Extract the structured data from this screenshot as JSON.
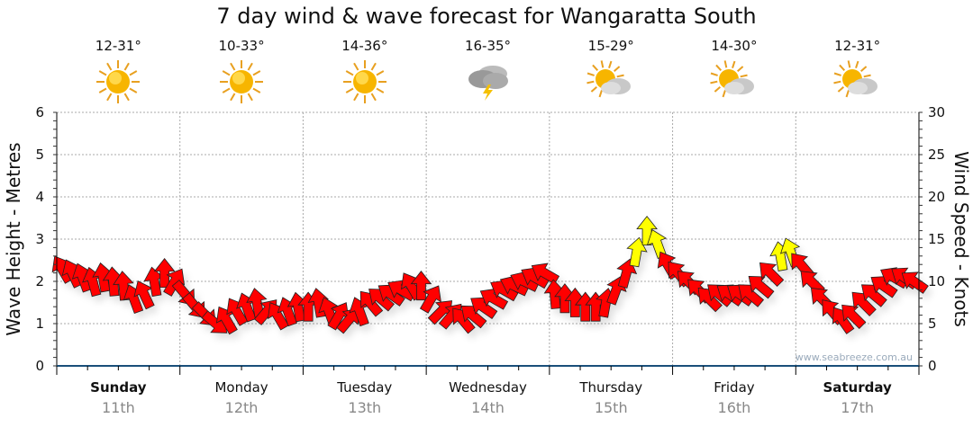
{
  "title": "7 day wind & wave forecast for Wangaratta South",
  "days": [
    {
      "name": "Sunday",
      "date": "11th",
      "temp": "12-31°",
      "icon": "sunny-icon",
      "bold": true
    },
    {
      "name": "Monday",
      "date": "12th",
      "temp": "10-33°",
      "icon": "sunny-icon",
      "bold": false
    },
    {
      "name": "Tuesday",
      "date": "13th",
      "temp": "14-36°",
      "icon": "sunny-icon",
      "bold": false
    },
    {
      "name": "Wednesday",
      "date": "14th",
      "temp": "16-35°",
      "icon": "storm-icon",
      "bold": false
    },
    {
      "name": "Thursday",
      "date": "15th",
      "temp": "15-29°",
      "icon": "partly-cloudy-icon",
      "bold": false
    },
    {
      "name": "Friday",
      "date": "16th",
      "temp": "14-30°",
      "icon": "partly-cloudy-icon",
      "bold": false
    },
    {
      "name": "Saturday",
      "date": "17th",
      "temp": "12-31°",
      "icon": "partly-cloudy-icon",
      "bold": true
    }
  ],
  "watermark": "www.seabreeze.com.au",
  "colors": {
    "calm": "#ff0000",
    "strong": "#ffff00",
    "axis": "#1a4f7a"
  },
  "chart_data": {
    "type": "scatter",
    "title": "7 day wind & wave forecast for Wangaratta South",
    "ylabel_left": "Wave Height - Metres",
    "ylim_left": [
      0,
      6
    ],
    "yticks_left": [
      "0",
      "1",
      "2",
      "3",
      "4",
      "5",
      "6"
    ],
    "ylabel_right": "Wind Speed - Knots",
    "ylim_right": [
      0,
      30
    ],
    "yticks_right": [
      "0",
      "5",
      "10",
      "15",
      "20",
      "25",
      "30"
    ],
    "strong_threshold_knots": 12.5,
    "points_per_day": 12,
    "wind_knots": [
      11.5,
      11,
      10.5,
      10,
      10.5,
      10,
      9.5,
      8,
      8.5,
      10,
      11,
      10,
      8.5,
      7,
      6,
      5,
      5.5,
      6.5,
      7,
      7.5,
      6.5,
      6,
      6.5,
      7,
      7,
      7.5,
      6.5,
      6,
      5.5,
      6.5,
      7.5,
      8,
      8.5,
      9,
      9.5,
      9.5,
      8,
      6.5,
      6,
      5.5,
      6,
      7,
      8,
      9,
      9.5,
      10,
      10.5,
      11,
      8.5,
      8,
      7.5,
      7,
      7,
      7.5,
      9,
      11,
      13.5,
      16,
      14.5,
      12,
      11,
      10,
      9,
      8,
      8.5,
      8.5,
      8.5,
      8.5,
      9.5,
      11,
      13,
      13.5,
      12,
      10,
      8,
      6.5,
      5.5,
      6,
      7.5,
      8.5,
      9.5,
      10.5,
      10.5,
      10
    ],
    "wind_heading_deg": [
      -30,
      -25,
      -20,
      -15,
      -10,
      -5,
      -5,
      -20,
      -25,
      -10,
      0,
      30,
      140,
      140,
      135,
      130,
      -30,
      -30,
      -20,
      -10,
      40,
      -30,
      -20,
      -10,
      0,
      -10,
      -20,
      30,
      40,
      -20,
      -40,
      -50,
      -55,
      -60,
      -30,
      0,
      30,
      45,
      40,
      -40,
      -50,
      -55,
      -60,
      -60,
      -65,
      -65,
      -60,
      -60,
      -5,
      0,
      0,
      0,
      0,
      10,
      20,
      15,
      10,
      0,
      -20,
      -30,
      -40,
      -45,
      -45,
      -45,
      -50,
      -55,
      -55,
      -50,
      -50,
      -45,
      -10,
      -20,
      -40,
      -45,
      -45,
      -40,
      -35,
      -45,
      -45,
      -50,
      -55,
      -60,
      -55,
      -55
    ]
  }
}
